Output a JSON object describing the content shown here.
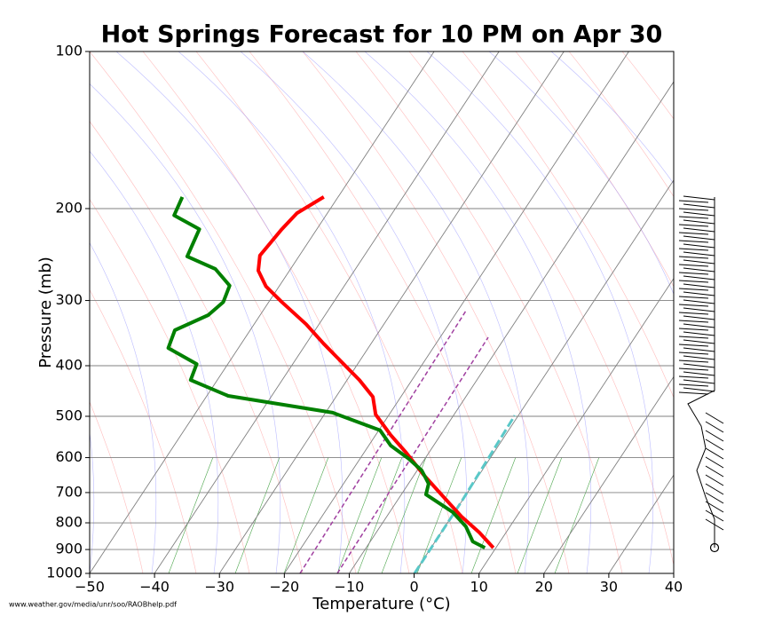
{
  "chart_data": {
    "type": "skewt",
    "title": "Hot Springs Forecast for 10 PM on Apr 30",
    "xlabel": "Temperature (°C)",
    "ylabel": "Pressure (mb)",
    "note": "www.weather.gov/media/unr/soo/RAOBhelp.pdf",
    "xlim": [
      -50,
      40
    ],
    "ylim": [
      1000,
      100
    ],
    "ylog": true,
    "xticks": [
      {
        "value": -50,
        "label": "−50"
      },
      {
        "value": -40,
        "label": "−40"
      },
      {
        "value": -30,
        "label": "−30"
      },
      {
        "value": -20,
        "label": "−20"
      },
      {
        "value": -10,
        "label": "−10"
      },
      0,
      10,
      20,
      30,
      40
    ],
    "yticks": [
      100,
      200,
      300,
      400,
      500,
      600,
      700,
      800,
      900,
      1000
    ],
    "series": [
      {
        "color": "#ff0000",
        "pressure": [
          893,
          835,
          778,
          700,
          648,
          587,
          543,
          496,
          459,
          426,
          394,
          363,
          333,
          302,
          282,
          263,
          246,
          219,
          204,
          190
        ],
        "temperature": [
          9.6,
          5.9,
          1.5,
          -4.3,
          -8.5,
          -13.5,
          -17.7,
          -22.1,
          -24.3,
          -28.1,
          -32.6,
          -37.3,
          -42.0,
          -48.0,
          -52.0,
          -54.8,
          -56.1,
          -55.4,
          -54.7,
          -52.2
        ]
      },
      {
        "color": "#008000",
        "pressure": [
          893,
          869,
          813,
          763,
          706,
          673,
          635,
          603,
          569,
          532,
          492,
          457,
          426,
          397,
          370,
          342,
          320,
          302,
          281,
          261,
          247,
          219,
          206,
          190
        ],
        "temperature": [
          8.3,
          5.8,
          3.2,
          -0.3,
          -6.2,
          -6.9,
          -9.3,
          -12.5,
          -16.6,
          -19.8,
          -28.9,
          -46.7,
          -54.1,
          -54.8,
          -60.8,
          -61.6,
          -58.0,
          -57.0,
          -57.7,
          -61.6,
          -67.2,
          -68.1,
          -73.4,
          -74.0
        ]
      }
    ]
  }
}
